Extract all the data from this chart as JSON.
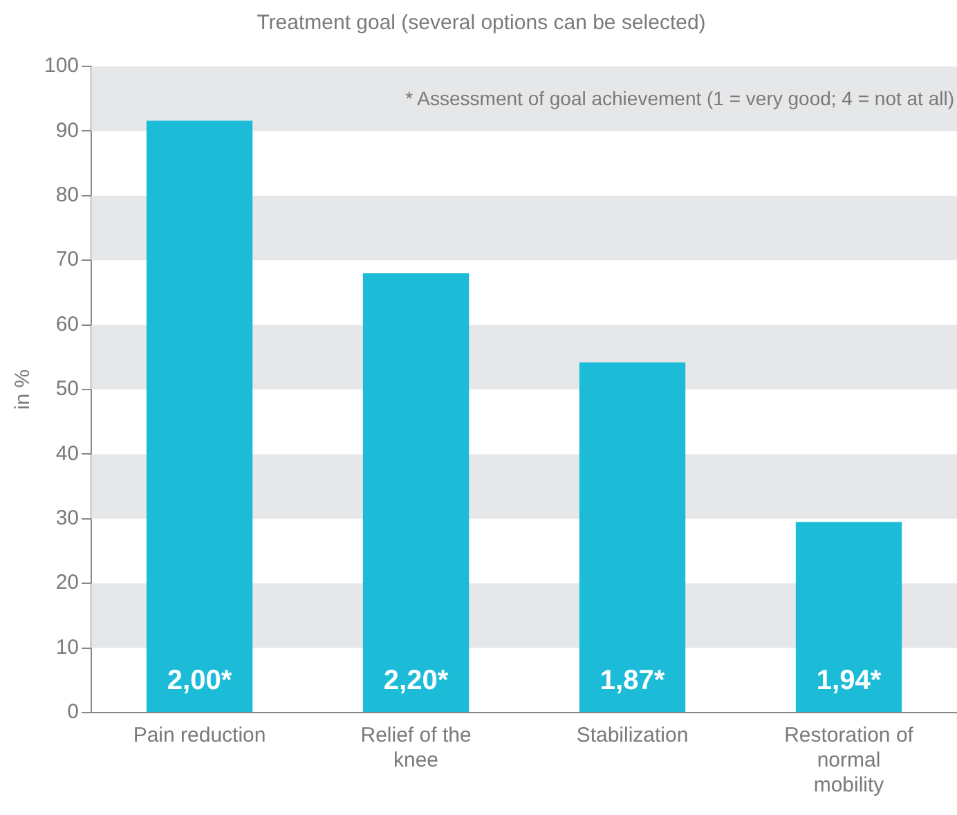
{
  "chart_data": {
    "type": "bar",
    "title": "Treatment goal (several options can be selected)",
    "ylabel": "in %",
    "categories": [
      "Pain reduction",
      "Relief of the knee",
      "Stabilization",
      "Restoration of normal mobility"
    ],
    "values": [
      91.6,
      68,
      54.2,
      29.5
    ],
    "color": "#1cbcd8",
    "annotations": [
      "* Assessment of goal achievement (1 = very good; 4 = not at all)",
      "2,00*",
      "2,20*",
      "1,87*",
      "1,94*"
    ],
    "ylim": [
      0,
      100
    ],
    "yticks": [
      0,
      10,
      20,
      30,
      40,
      50,
      60,
      70,
      80,
      90,
      100
    ],
    "bands": [
      {
        "axis": "y",
        "from": 10,
        "to": 20,
        "color": "#e6e7e9"
      },
      {
        "axis": "y",
        "from": 30,
        "to": 40,
        "color": "#e6e7e9"
      },
      {
        "axis": "y",
        "from": 50,
        "to": 60,
        "color": "#e6e7e9"
      },
      {
        "axis": "y",
        "from": 70,
        "to": 80,
        "color": "#e6e7e9"
      },
      {
        "axis": "y",
        "from": 90,
        "to": 100,
        "color": "#e6e7e9"
      }
    ],
    "grid": false,
    "legend": false
  }
}
